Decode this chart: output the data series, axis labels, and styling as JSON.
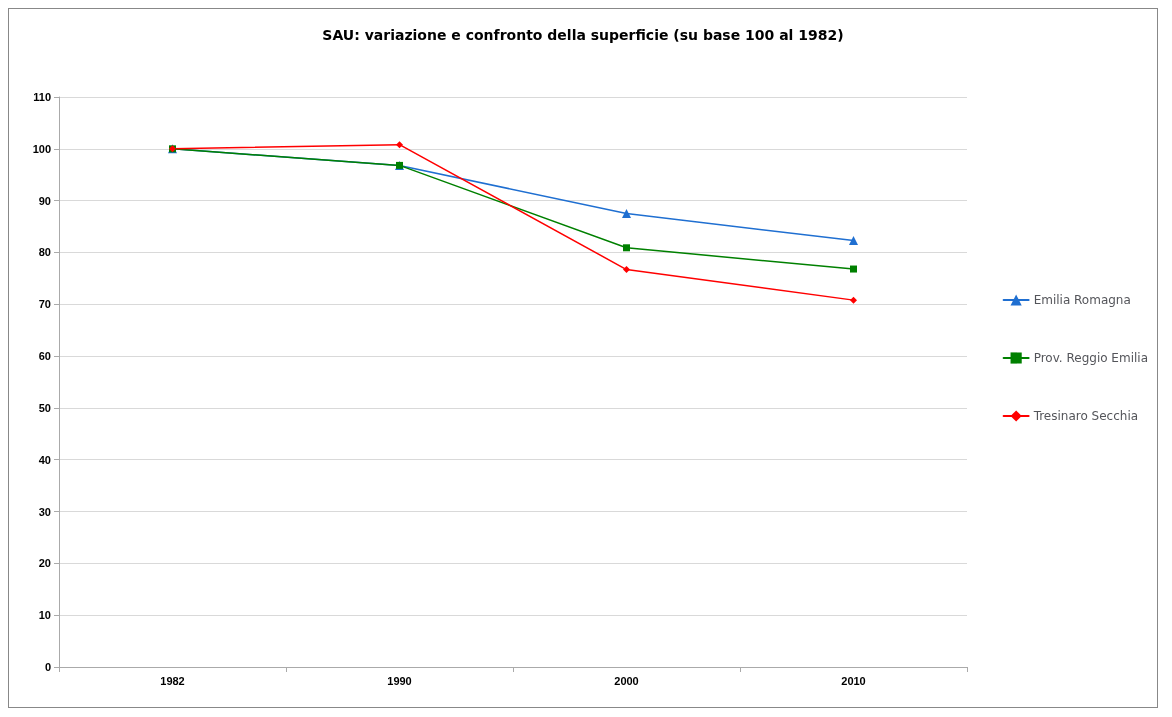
{
  "chart_data": {
    "type": "line",
    "title": "SAU: variazione e confronto della superficie (su base 100 al 1982)",
    "categories": [
      "1982",
      "1990",
      "2000",
      "2010"
    ],
    "series": [
      {
        "name": "Emilia Romagna",
        "color": "#1f6fd1",
        "marker": "triangle",
        "values": [
          100,
          96.8,
          87.5,
          82.3
        ]
      },
      {
        "name": "Prov. Reggio Emilia",
        "color": "#008000",
        "marker": "square",
        "values": [
          100,
          96.8,
          80.9,
          76.8
        ]
      },
      {
        "name": "Tresinaro Secchia",
        "color": "#ff0000",
        "marker": "diamond",
        "values": [
          100,
          100.8,
          76.7,
          70.8
        ]
      }
    ],
    "ylim": [
      0,
      110
    ],
    "yticks": [
      0,
      10,
      20,
      30,
      40,
      50,
      60,
      70,
      80,
      90,
      100,
      110
    ],
    "grid": "y",
    "legend": "right",
    "line_style": "solid"
  }
}
